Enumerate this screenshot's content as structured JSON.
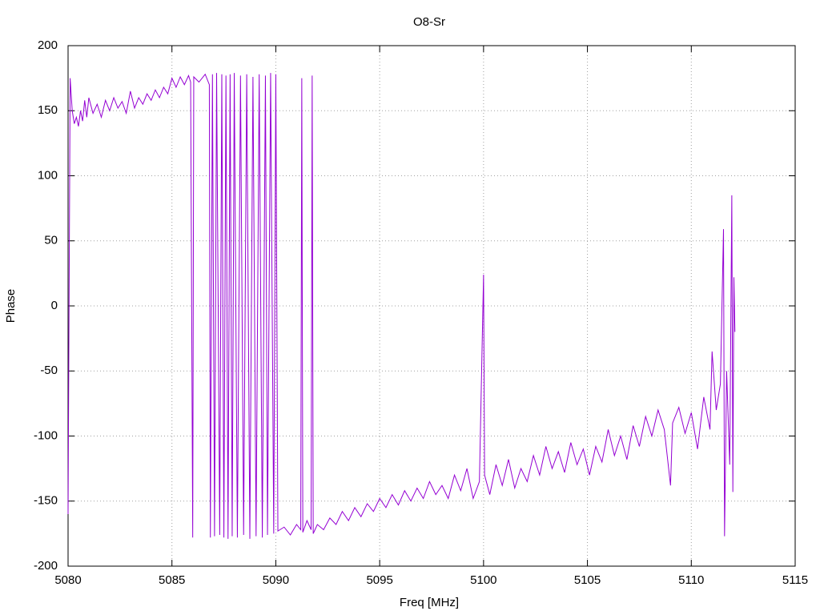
{
  "chart_data": {
    "type": "line",
    "title": "O8-Sr",
    "x_label": "Freq [MHz]",
    "y_label": "Phase",
    "xlim": [
      5080,
      5115
    ],
    "xticks": [
      5080,
      5085,
      5090,
      5095,
      5100,
      5105,
      5110,
      5115
    ],
    "ylim": [
      -200,
      200
    ],
    "yticks": [
      -200,
      -150,
      -100,
      -50,
      0,
      50,
      100,
      150,
      200
    ],
    "grid": true,
    "series": [
      {
        "color": "#9400d3",
        "x": [
          5080.0,
          5080.05,
          5080.1,
          5080.2,
          5080.3,
          5080.4,
          5080.5,
          5080.6,
          5080.7,
          5080.8,
          5080.9,
          5081.0,
          5081.2,
          5081.4,
          5081.6,
          5081.8,
          5082.0,
          5082.2,
          5082.4,
          5082.6,
          5082.8,
          5083.0,
          5083.2,
          5083.4,
          5083.6,
          5083.8,
          5084.0,
          5084.2,
          5084.4,
          5084.6,
          5084.8,
          5085.0,
          5085.2,
          5085.4,
          5085.6,
          5085.8,
          5085.9,
          5086.0,
          5086.05,
          5086.3,
          5086.6,
          5086.8,
          5086.85,
          5086.95,
          5087.05,
          5087.15,
          5087.3,
          5087.4,
          5087.5,
          5087.6,
          5087.7,
          5087.8,
          5087.9,
          5088.0,
          5088.15,
          5088.3,
          5088.45,
          5088.6,
          5088.75,
          5088.9,
          5089.05,
          5089.2,
          5089.35,
          5089.5,
          5089.6,
          5089.75,
          5089.9,
          5090.0,
          5090.1,
          5090.4,
          5090.7,
          5091.0,
          5091.2,
          5091.25,
          5091.3,
          5091.5,
          5091.7,
          5091.75,
          5091.8,
          5092.0,
          5092.3,
          5092.6,
          5092.9,
          5093.2,
          5093.5,
          5093.8,
          5094.1,
          5094.4,
          5094.7,
          5095.0,
          5095.3,
          5095.6,
          5095.9,
          5096.2,
          5096.5,
          5096.8,
          5097.1,
          5097.4,
          5097.7,
          5098.0,
          5098.3,
          5098.6,
          5098.9,
          5099.2,
          5099.5,
          5099.8,
          5100.0,
          5100.05,
          5100.3,
          5100.6,
          5100.9,
          5101.2,
          5101.5,
          5101.8,
          5102.1,
          5102.4,
          5102.7,
          5103.0,
          5103.3,
          5103.6,
          5103.9,
          5104.2,
          5104.5,
          5104.8,
          5105.1,
          5105.4,
          5105.7,
          5106.0,
          5106.3,
          5106.6,
          5106.9,
          5107.2,
          5107.5,
          5107.8,
          5108.1,
          5108.4,
          5108.7,
          5109.0,
          5109.1,
          5109.4,
          5109.7,
          5110.0,
          5110.3,
          5110.6,
          5110.9,
          5111.0,
          5111.2,
          5111.4,
          5111.55,
          5111.6,
          5111.7,
          5111.85,
          5111.95,
          5112.0,
          5112.05,
          5112.1
        ],
        "values": [
          -160,
          10,
          175,
          150,
          140,
          145,
          138,
          150,
          142,
          158,
          145,
          160,
          148,
          155,
          145,
          158,
          150,
          160,
          152,
          157,
          148,
          165,
          152,
          160,
          155,
          163,
          158,
          166,
          160,
          168,
          163,
          175,
          168,
          176,
          170,
          177,
          172,
          -178,
          176,
          172,
          178,
          170,
          -178,
          178,
          -177,
          179,
          -176,
          178,
          -178,
          177,
          -179,
          178,
          -177,
          179,
          -178,
          177,
          -176,
          178,
          -179,
          176,
          -177,
          178,
          -178,
          177,
          -176,
          179,
          -175,
          178,
          -173,
          -170,
          -176,
          -168,
          -172,
          175,
          -174,
          -165,
          -172,
          177,
          -175,
          -168,
          -172,
          -163,
          -168,
          -158,
          -165,
          -155,
          -162,
          -152,
          -158,
          -148,
          -155,
          -145,
          -153,
          -142,
          -150,
          -140,
          -148,
          -135,
          -145,
          -138,
          -148,
          -130,
          -142,
          -125,
          -148,
          -135,
          24,
          -130,
          -145,
          -122,
          -138,
          -118,
          -140,
          -125,
          -135,
          -115,
          -130,
          -108,
          -125,
          -112,
          -128,
          -105,
          -122,
          -110,
          -130,
          -108,
          -120,
          -95,
          -115,
          -100,
          -118,
          -92,
          -108,
          -85,
          -100,
          -80,
          -95,
          -138,
          -90,
          -78,
          -98,
          -82,
          -110,
          -70,
          -95,
          -35,
          -80,
          -60,
          59,
          -177,
          -50,
          -122,
          85,
          -143,
          22,
          -20
        ]
      }
    ]
  }
}
